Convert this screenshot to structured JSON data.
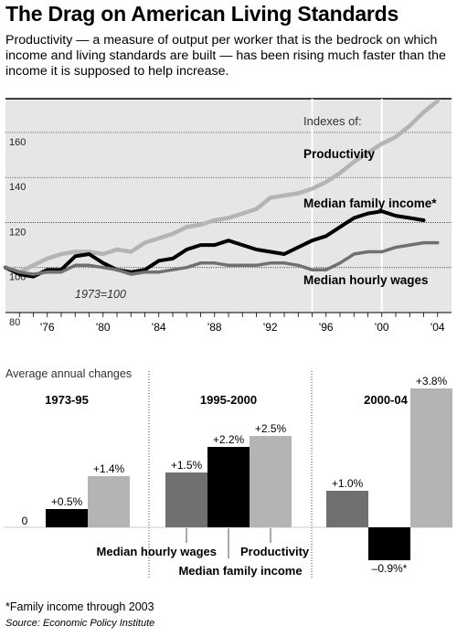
{
  "header": {
    "title": "The Drag on American Living Standards",
    "subtitle": "Productivity — a measure of output per worker that is the bedrock on which income and living standards are built — has been rising much faster than the income it is supposed to help increase."
  },
  "colors": {
    "plot_bg": "#e6e6e6",
    "productivity": "#b4b4b4",
    "family_income": "#000000",
    "hourly_wages": "#707070"
  },
  "chart_data": [
    {
      "type": "line",
      "title": "Indexes of:",
      "annotation": "1973=100",
      "xlim": [
        1973,
        2005
      ],
      "ylim": [
        80,
        175
      ],
      "x_ticks": [
        1976,
        1980,
        1984,
        1988,
        1992,
        1996,
        2000,
        2004
      ],
      "x_tick_labels": [
        "'76",
        "'80",
        "'84",
        "'88",
        "'92",
        "'96",
        "'00",
        "'04"
      ],
      "y_ticks": [
        80,
        100,
        120,
        140,
        160
      ],
      "highlight_x": [
        1995,
        2000
      ],
      "series": [
        {
          "name": "Productivity",
          "x": [
            1973,
            1974,
            1975,
            1976,
            1977,
            1978,
            1979,
            1980,
            1981,
            1982,
            1983,
            1984,
            1985,
            1986,
            1987,
            1988,
            1989,
            1990,
            1991,
            1992,
            1993,
            1994,
            1995,
            1996,
            1997,
            1998,
            1999,
            2000,
            2001,
            2002,
            2003,
            2004
          ],
          "y": [
            100,
            98,
            101,
            104,
            106,
            107,
            107,
            106,
            108,
            107,
            111,
            113,
            115,
            118,
            119,
            121,
            122,
            124,
            126,
            131,
            132,
            133,
            135,
            138,
            142,
            147,
            151,
            155,
            158,
            163,
            169,
            174
          ]
        },
        {
          "name": "Median family income*",
          "x": [
            1973,
            1974,
            1975,
            1976,
            1977,
            1978,
            1979,
            1980,
            1981,
            1982,
            1983,
            1984,
            1985,
            1986,
            1987,
            1988,
            1989,
            1990,
            1991,
            1992,
            1993,
            1994,
            1995,
            1996,
            1997,
            1998,
            1999,
            2000,
            2001,
            2002,
            2003
          ],
          "y": [
            100,
            97,
            96,
            99,
            99,
            105,
            106,
            102,
            99,
            98,
            99,
            103,
            104,
            108,
            110,
            110,
            112,
            110,
            108,
            107,
            106,
            109,
            112,
            114,
            118,
            122,
            124,
            125,
            123,
            122,
            121
          ]
        },
        {
          "name": "Median hourly wages",
          "x": [
            1973,
            1974,
            1975,
            1976,
            1977,
            1978,
            1979,
            1980,
            1981,
            1982,
            1983,
            1984,
            1985,
            1986,
            1987,
            1988,
            1989,
            1990,
            1991,
            1992,
            1993,
            1994,
            1995,
            1996,
            1997,
            1998,
            1999,
            2000,
            2001,
            2002,
            2003,
            2004
          ],
          "y": [
            100,
            98,
            97,
            98,
            98,
            101,
            101,
            100,
            99,
            97,
            98,
            98,
            99,
            100,
            102,
            102,
            101,
            101,
            101,
            102,
            102,
            101,
            99,
            99,
            102,
            106,
            107,
            107,
            109,
            110,
            111,
            111
          ]
        }
      ]
    },
    {
      "type": "bar",
      "title": "Average annual changes",
      "unit": "%",
      "ylim": [
        -1.3,
        4.0
      ],
      "categories": [
        "Median hourly wages",
        "Median family income",
        "Productivity"
      ],
      "groups": [
        {
          "name": "1973-95",
          "values": [
            0.0,
            0.5,
            1.4
          ],
          "labels": [
            "0",
            "+0.5%",
            "+1.4%"
          ]
        },
        {
          "name": "1995-2000",
          "values": [
            1.5,
            2.2,
            2.5
          ],
          "labels": [
            "+1.5%",
            "+2.2%",
            "+2.5%"
          ]
        },
        {
          "name": "2000-04",
          "values": [
            1.0,
            -0.9,
            3.8
          ],
          "labels": [
            "+1.0%",
            "–0.9%*",
            "+3.8%"
          ]
        }
      ]
    }
  ],
  "footer": {
    "footnote": "*Family income through 2003",
    "source": "Source: Economic Policy Institute"
  }
}
